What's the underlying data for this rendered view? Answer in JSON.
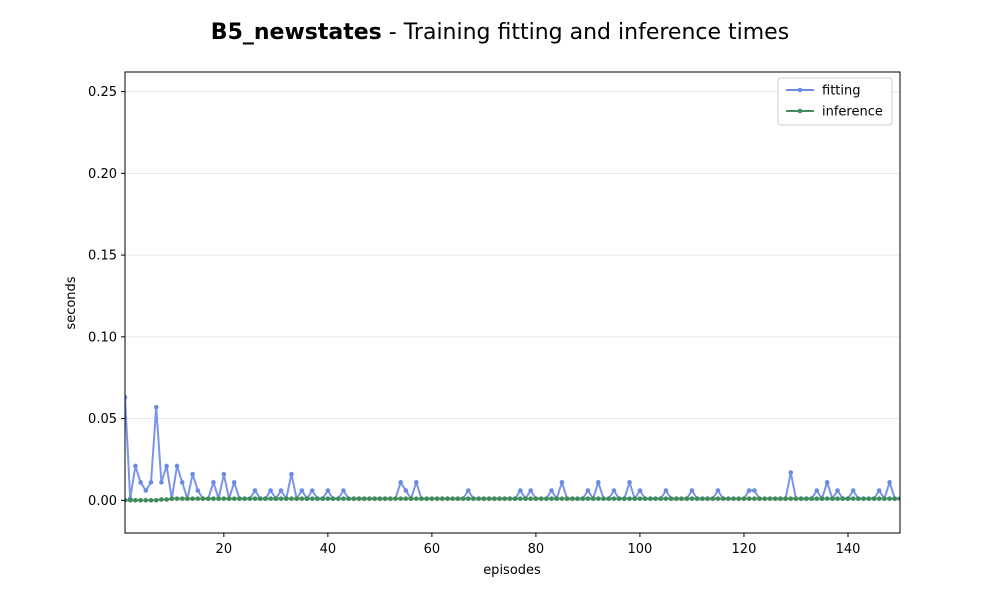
{
  "chart_data": {
    "type": "line",
    "title_bold": "B5_newstates",
    "title_rest": " - Training fitting and inference times",
    "xlabel": "episodes",
    "ylabel": "seconds",
    "xlim": [
      1,
      150
    ],
    "ylim": [
      -0.02,
      0.262
    ],
    "xticks": [
      20,
      40,
      60,
      80,
      100,
      120,
      140
    ],
    "xtick_labels": [
      "20",
      "40",
      "60",
      "80",
      "100",
      "120",
      "140"
    ],
    "yticks": [
      0.0,
      0.05,
      0.1,
      0.15,
      0.2,
      0.25
    ],
    "ytick_labels": [
      "0.00",
      "0.05",
      "0.10",
      "0.15",
      "0.20",
      "0.25"
    ],
    "grid": "horizontal",
    "legend_position": "top-right",
    "series": [
      {
        "name": "fitting",
        "color": "#6a8ae6",
        "x": [
          1,
          2,
          3,
          4,
          5,
          6,
          7,
          8,
          9,
          10,
          11,
          12,
          13,
          14,
          15,
          16,
          17,
          18,
          19,
          20,
          21,
          22,
          23,
          24,
          25,
          26,
          27,
          28,
          29,
          30,
          31,
          32,
          33,
          34,
          35,
          36,
          37,
          38,
          39,
          40,
          41,
          42,
          43,
          44,
          45,
          46,
          47,
          48,
          49,
          50,
          51,
          52,
          53,
          54,
          55,
          56,
          57,
          58,
          59,
          60,
          61,
          62,
          63,
          64,
          65,
          66,
          67,
          68,
          69,
          70,
          71,
          72,
          73,
          74,
          75,
          76,
          77,
          78,
          79,
          80,
          81,
          82,
          83,
          84,
          85,
          86,
          87,
          88,
          89,
          90,
          91,
          92,
          93,
          94,
          95,
          96,
          97,
          98,
          99,
          100,
          101,
          102,
          103,
          104,
          105,
          106,
          107,
          108,
          109,
          110,
          111,
          112,
          113,
          114,
          115,
          116,
          117,
          118,
          119,
          120,
          121,
          122,
          123,
          124,
          125,
          126,
          127,
          128,
          129,
          130,
          131,
          132,
          133,
          134,
          135,
          136,
          137,
          138,
          139,
          140,
          141,
          142,
          143,
          144,
          145,
          146,
          147,
          148,
          149,
          150
        ],
        "values": [
          0.063,
          0.001,
          0.021,
          0.011,
          0.006,
          0.011,
          0.057,
          0.011,
          0.021,
          0.001,
          0.021,
          0.011,
          0.001,
          0.016,
          0.006,
          0.001,
          0.001,
          0.011,
          0.001,
          0.016,
          0.001,
          0.011,
          0.001,
          0.001,
          0.001,
          0.006,
          0.001,
          0.001,
          0.006,
          0.001,
          0.006,
          0.001,
          0.016,
          0.001,
          0.006,
          0.001,
          0.006,
          0.001,
          0.001,
          0.006,
          0.001,
          0.001,
          0.006,
          0.001,
          0.001,
          0.001,
          0.001,
          0.001,
          0.001,
          0.001,
          0.001,
          0.001,
          0.001,
          0.011,
          0.006,
          0.001,
          0.011,
          0.001,
          0.001,
          0.001,
          0.001,
          0.001,
          0.001,
          0.001,
          0.001,
          0.001,
          0.006,
          0.001,
          0.001,
          0.001,
          0.001,
          0.001,
          0.001,
          0.001,
          0.001,
          0.001,
          0.006,
          0.001,
          0.006,
          0.001,
          0.001,
          0.001,
          0.006,
          0.001,
          0.011,
          0.001,
          0.001,
          0.001,
          0.001,
          0.006,
          0.001,
          0.011,
          0.001,
          0.001,
          0.006,
          0.001,
          0.001,
          0.011,
          0.001,
          0.006,
          0.001,
          0.001,
          0.001,
          0.001,
          0.006,
          0.001,
          0.001,
          0.001,
          0.001,
          0.006,
          0.001,
          0.001,
          0.001,
          0.001,
          0.006,
          0.001,
          0.001,
          0.001,
          0.001,
          0.001,
          0.006,
          0.006,
          0.001,
          0.001,
          0.001,
          0.001,
          0.001,
          0.001,
          0.017,
          0.001,
          0.001,
          0.001,
          0.001,
          0.006,
          0.001,
          0.011,
          0.001,
          0.006,
          0.001,
          0.001,
          0.006,
          0.001,
          0.001,
          0.001,
          0.001,
          0.006,
          0.001,
          0.011,
          0.001,
          0.001
        ]
      },
      {
        "name": "inference",
        "color": "#3f8c5a",
        "x": [
          1,
          2,
          3,
          4,
          5,
          6,
          7,
          8,
          9,
          10,
          11,
          12,
          13,
          14,
          15,
          16,
          17,
          18,
          19,
          20,
          21,
          22,
          23,
          24,
          25,
          26,
          27,
          28,
          29,
          30,
          31,
          32,
          33,
          34,
          35,
          36,
          37,
          38,
          39,
          40,
          41,
          42,
          43,
          44,
          45,
          46,
          47,
          48,
          49,
          50,
          51,
          52,
          53,
          54,
          55,
          56,
          57,
          58,
          59,
          60,
          61,
          62,
          63,
          64,
          65,
          66,
          67,
          68,
          69,
          70,
          71,
          72,
          73,
          74,
          75,
          76,
          77,
          78,
          79,
          80,
          81,
          82,
          83,
          84,
          85,
          86,
          87,
          88,
          89,
          90,
          91,
          92,
          93,
          94,
          95,
          96,
          97,
          98,
          99,
          100,
          101,
          102,
          103,
          104,
          105,
          106,
          107,
          108,
          109,
          110,
          111,
          112,
          113,
          114,
          115,
          116,
          117,
          118,
          119,
          120,
          121,
          122,
          123,
          124,
          125,
          126,
          127,
          128,
          129,
          130,
          131,
          132,
          133,
          134,
          135,
          136,
          137,
          138,
          139,
          140,
          141,
          142,
          143,
          144,
          145,
          146,
          147,
          148,
          149,
          150
        ],
        "values": [
          0.0,
          0.0,
          0.0,
          0.0,
          0.0,
          0.0,
          0.0,
          0.0005,
          0.0005,
          0.001,
          0.001,
          0.001,
          0.001,
          0.001,
          0.001,
          0.001,
          0.001,
          0.001,
          0.001,
          0.001,
          0.001,
          0.001,
          0.001,
          0.001,
          0.001,
          0.001,
          0.001,
          0.001,
          0.001,
          0.001,
          0.001,
          0.001,
          0.001,
          0.001,
          0.001,
          0.001,
          0.001,
          0.001,
          0.001,
          0.001,
          0.001,
          0.001,
          0.001,
          0.001,
          0.001,
          0.001,
          0.001,
          0.001,
          0.001,
          0.001,
          0.001,
          0.001,
          0.001,
          0.001,
          0.001,
          0.001,
          0.001,
          0.001,
          0.001,
          0.001,
          0.001,
          0.001,
          0.001,
          0.001,
          0.001,
          0.001,
          0.001,
          0.001,
          0.001,
          0.001,
          0.001,
          0.001,
          0.001,
          0.001,
          0.001,
          0.001,
          0.001,
          0.001,
          0.001,
          0.001,
          0.001,
          0.001,
          0.001,
          0.001,
          0.001,
          0.001,
          0.001,
          0.001,
          0.001,
          0.001,
          0.001,
          0.001,
          0.001,
          0.001,
          0.001,
          0.001,
          0.001,
          0.001,
          0.001,
          0.001,
          0.001,
          0.001,
          0.001,
          0.001,
          0.001,
          0.001,
          0.001,
          0.001,
          0.001,
          0.001,
          0.001,
          0.001,
          0.001,
          0.001,
          0.001,
          0.001,
          0.001,
          0.001,
          0.001,
          0.001,
          0.001,
          0.001,
          0.001,
          0.001,
          0.001,
          0.001,
          0.001,
          0.001,
          0.001,
          0.001,
          0.001,
          0.001,
          0.001,
          0.001,
          0.001,
          0.001,
          0.001,
          0.001,
          0.001,
          0.001,
          0.001,
          0.001,
          0.001,
          0.001,
          0.001,
          0.001,
          0.001,
          0.001,
          0.001,
          0.001
        ]
      }
    ]
  }
}
